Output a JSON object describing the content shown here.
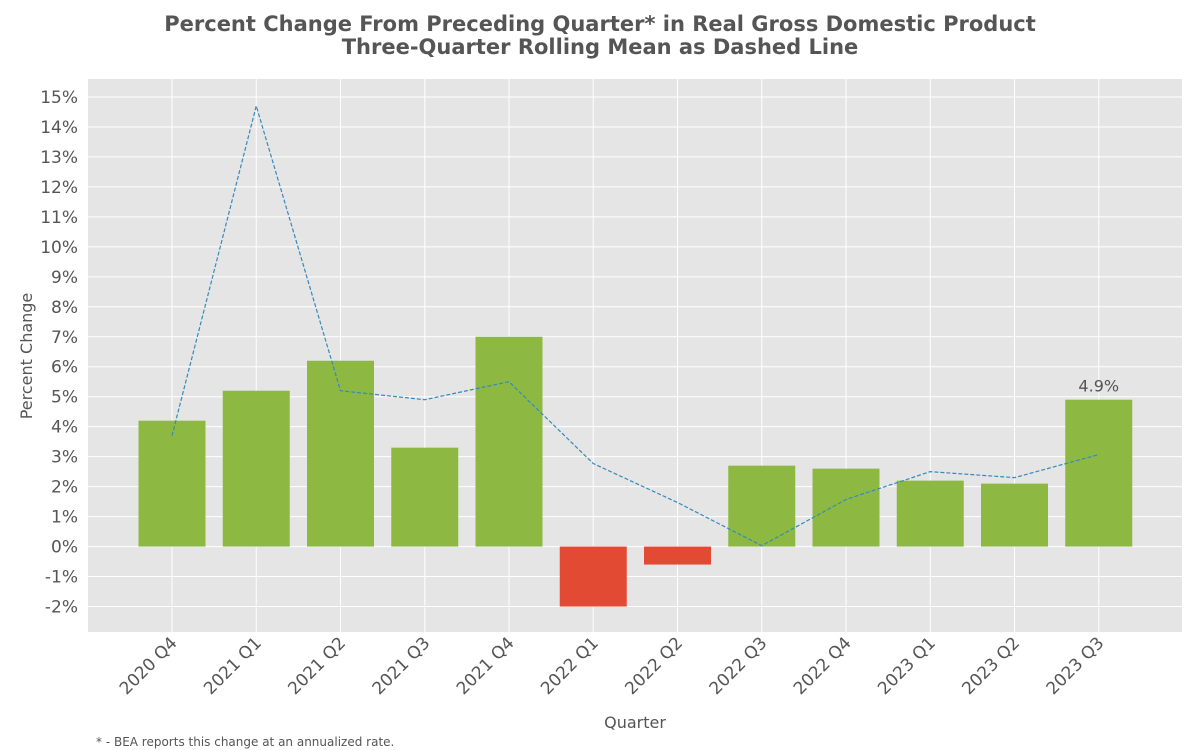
{
  "chart_data": {
    "type": "bar",
    "title": "Percent Change From Preceding Quarter* in Real Gross Domestic Product",
    "subtitle": "Three-Quarter Rolling Mean as Dashed Line",
    "xlabel": "Quarter",
    "ylabel": "Percent Change",
    "categories": [
      "2020 Q4",
      "2021 Q1",
      "2021 Q2",
      "2021 Q3",
      "2021 Q4",
      "2022 Q1",
      "2022 Q2",
      "2022 Q3",
      "2022 Q4",
      "2023 Q1",
      "2023 Q2",
      "2023 Q3"
    ],
    "values": [
      4.2,
      5.2,
      6.2,
      3.3,
      7.0,
      -2.0,
      -0.6,
      2.7,
      2.6,
      2.2,
      2.1,
      4.9
    ],
    "rolling_mean": {
      "style": "dashed",
      "values": [
        3.7,
        14.7,
        5.2,
        4.9,
        5.5,
        2.77,
        1.47,
        0.03,
        1.57,
        2.5,
        2.3,
        3.07
      ]
    },
    "ylim": [
      -2.85,
      15.6
    ],
    "yticks": [
      -2,
      -1,
      0,
      1,
      2,
      3,
      4,
      5,
      6,
      7,
      8,
      9,
      10,
      11,
      12,
      13,
      14,
      15
    ],
    "ytick_labels": [
      "-2%",
      "-1%",
      "0%",
      "1%",
      "2%",
      "3%",
      "4%",
      "5%",
      "6%",
      "7%",
      "8%",
      "9%",
      "10%",
      "11%",
      "12%",
      "13%",
      "14%",
      "15%"
    ],
    "annotations": [
      {
        "category": "2023 Q3",
        "value": 4.9,
        "text": "4.9%"
      }
    ],
    "grid": true,
    "colors": {
      "positive": "#8db942",
      "negative": "#e24a33",
      "line": "#348abd",
      "background": "#e5e5e5",
      "grid": "#ffffff"
    },
    "footnote": "* - BEA reports this change at an annualized rate."
  }
}
